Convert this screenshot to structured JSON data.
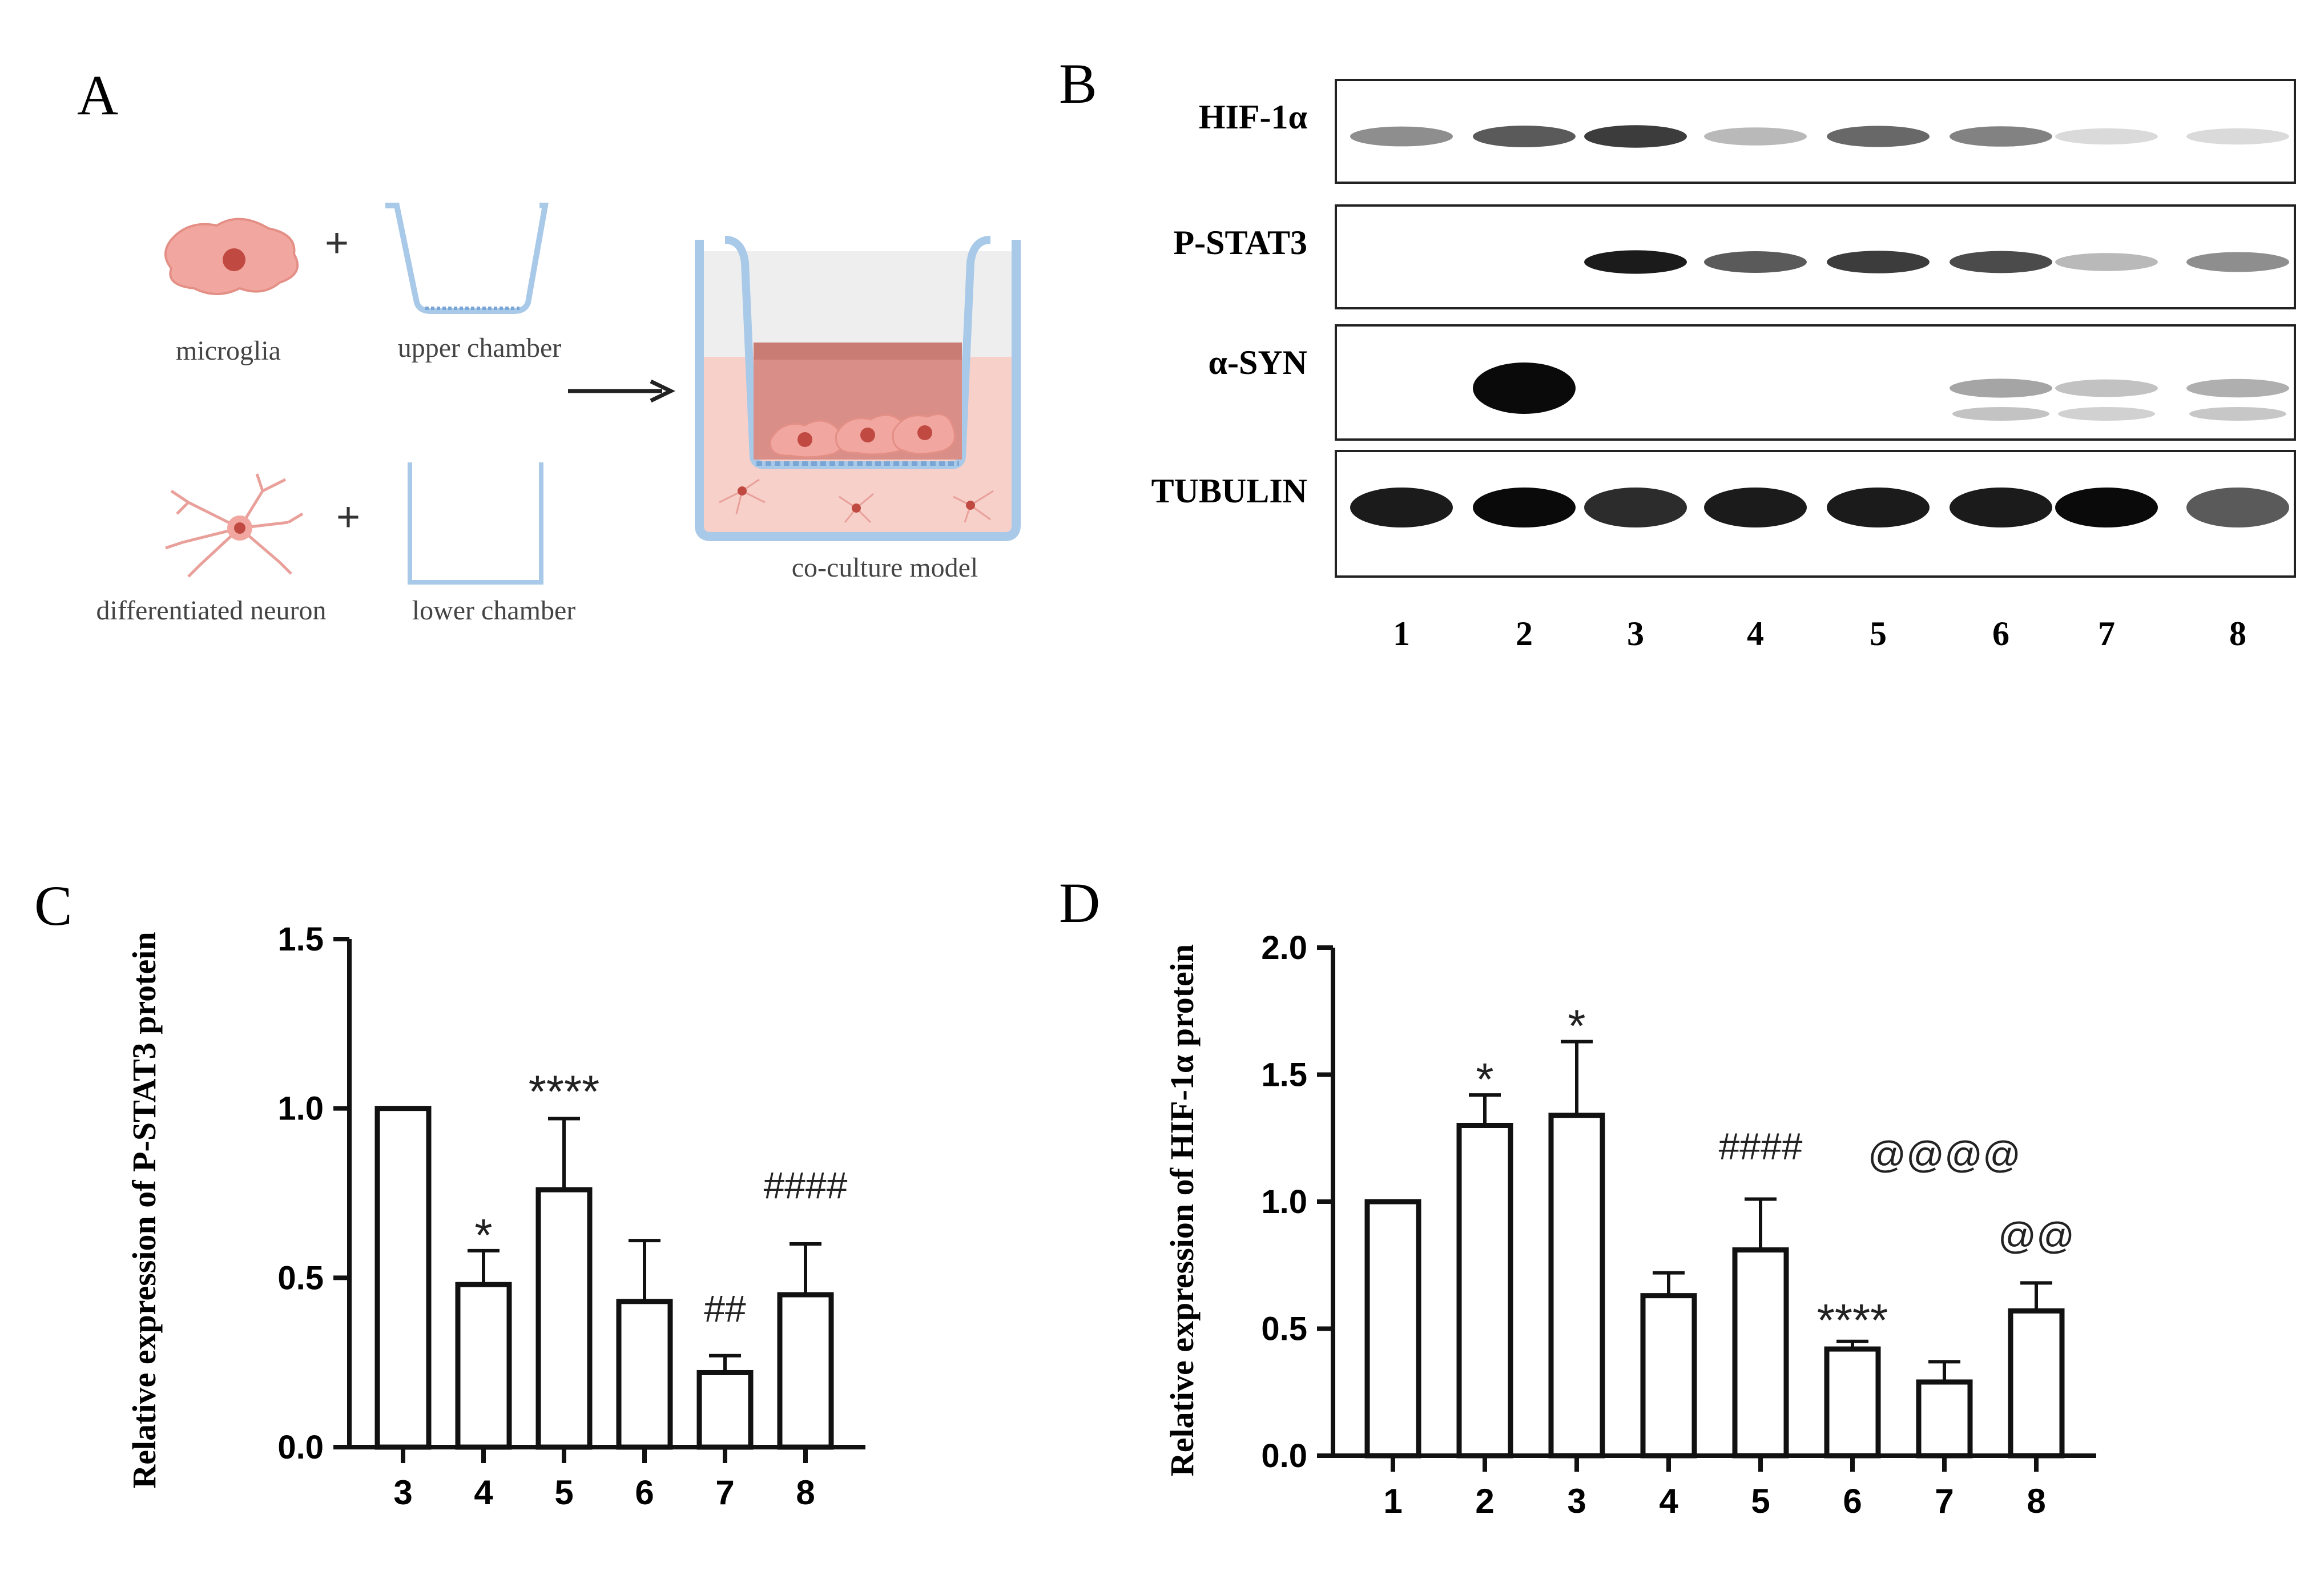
{
  "panels": {
    "A": {
      "letter": "A",
      "labels": {
        "microglia": "microglia",
        "upper_chamber": "upper chamber",
        "differentiated_neuron": "differentiated  neuron",
        "lower_chamber": "lower chamber",
        "co_culture_model": "co-culture model"
      },
      "plus_signs": [
        "+",
        "+"
      ],
      "colors": {
        "cell": "#f1a7a0",
        "nucleus": "#c04a42",
        "chamber": "#a9c9e9",
        "medium": "#f6d0c9"
      }
    },
    "B": {
      "letter": "B",
      "lanes": [
        "1",
        "2",
        "3",
        "4",
        "5",
        "6",
        "7",
        "8"
      ],
      "blots": [
        {
          "name": "HIF-1α",
          "band_intensity": [
            0.55,
            0.75,
            0.85,
            0.35,
            0.7,
            0.6,
            0.15,
            0.15
          ]
        },
        {
          "name": "P-STAT3",
          "band_intensity": [
            0.0,
            0.0,
            0.95,
            0.75,
            0.85,
            0.8,
            0.35,
            0.55
          ]
        },
        {
          "name": "α-SYN",
          "band_intensity": [
            0.0,
            1.0,
            0.0,
            0.0,
            0.0,
            0.45,
            0.3,
            0.4
          ]
        },
        {
          "name": "TUBULIN",
          "band_intensity": [
            0.95,
            1.0,
            0.9,
            0.95,
            0.95,
            0.95,
            1.0,
            0.75
          ]
        }
      ]
    }
  },
  "chart_data": [
    {
      "panel_letter": "C",
      "type": "bar",
      "categories": [
        "3",
        "4",
        "5",
        "6",
        "7",
        "8"
      ],
      "values": [
        1.0,
        0.48,
        0.76,
        0.43,
        0.22,
        0.45
      ],
      "errors": [
        0.0,
        0.1,
        0.21,
        0.18,
        0.05,
        0.15
      ],
      "ylabel": "Relative expression  of P-STAT3 protein",
      "ylim": [
        0,
        1.5
      ],
      "yticks": [
        "0.0",
        "0.5",
        "1.0",
        "1.5"
      ],
      "annotations": [
        {
          "category": "4",
          "text": "*"
        },
        {
          "category": "5",
          "text": "****"
        },
        {
          "category": "7",
          "text": "##"
        },
        {
          "category": "8",
          "text": "####"
        }
      ]
    },
    {
      "panel_letter": "D",
      "type": "bar",
      "categories": [
        "1",
        "2",
        "3",
        "4",
        "5",
        "6",
        "7",
        "8"
      ],
      "values": [
        1.0,
        1.3,
        1.34,
        0.63,
        0.81,
        0.42,
        0.29,
        0.57
      ],
      "errors": [
        0.0,
        0.12,
        0.29,
        0.09,
        0.2,
        0.03,
        0.08,
        0.11
      ],
      "ylabel": "Relative expression of HIF-1α protein",
      "ylim": [
        0,
        2.0
      ],
      "yticks": [
        "0.0",
        "0.5",
        "1.0",
        "1.5",
        "2.0"
      ],
      "annotations": [
        {
          "category": "2",
          "text": "*"
        },
        {
          "category": "3",
          "text": "*"
        },
        {
          "category": "5",
          "text": "####"
        },
        {
          "category": "6",
          "text": "****"
        },
        {
          "category": "7",
          "text": "@@@@"
        },
        {
          "category": "8",
          "text": "@@"
        }
      ]
    }
  ]
}
